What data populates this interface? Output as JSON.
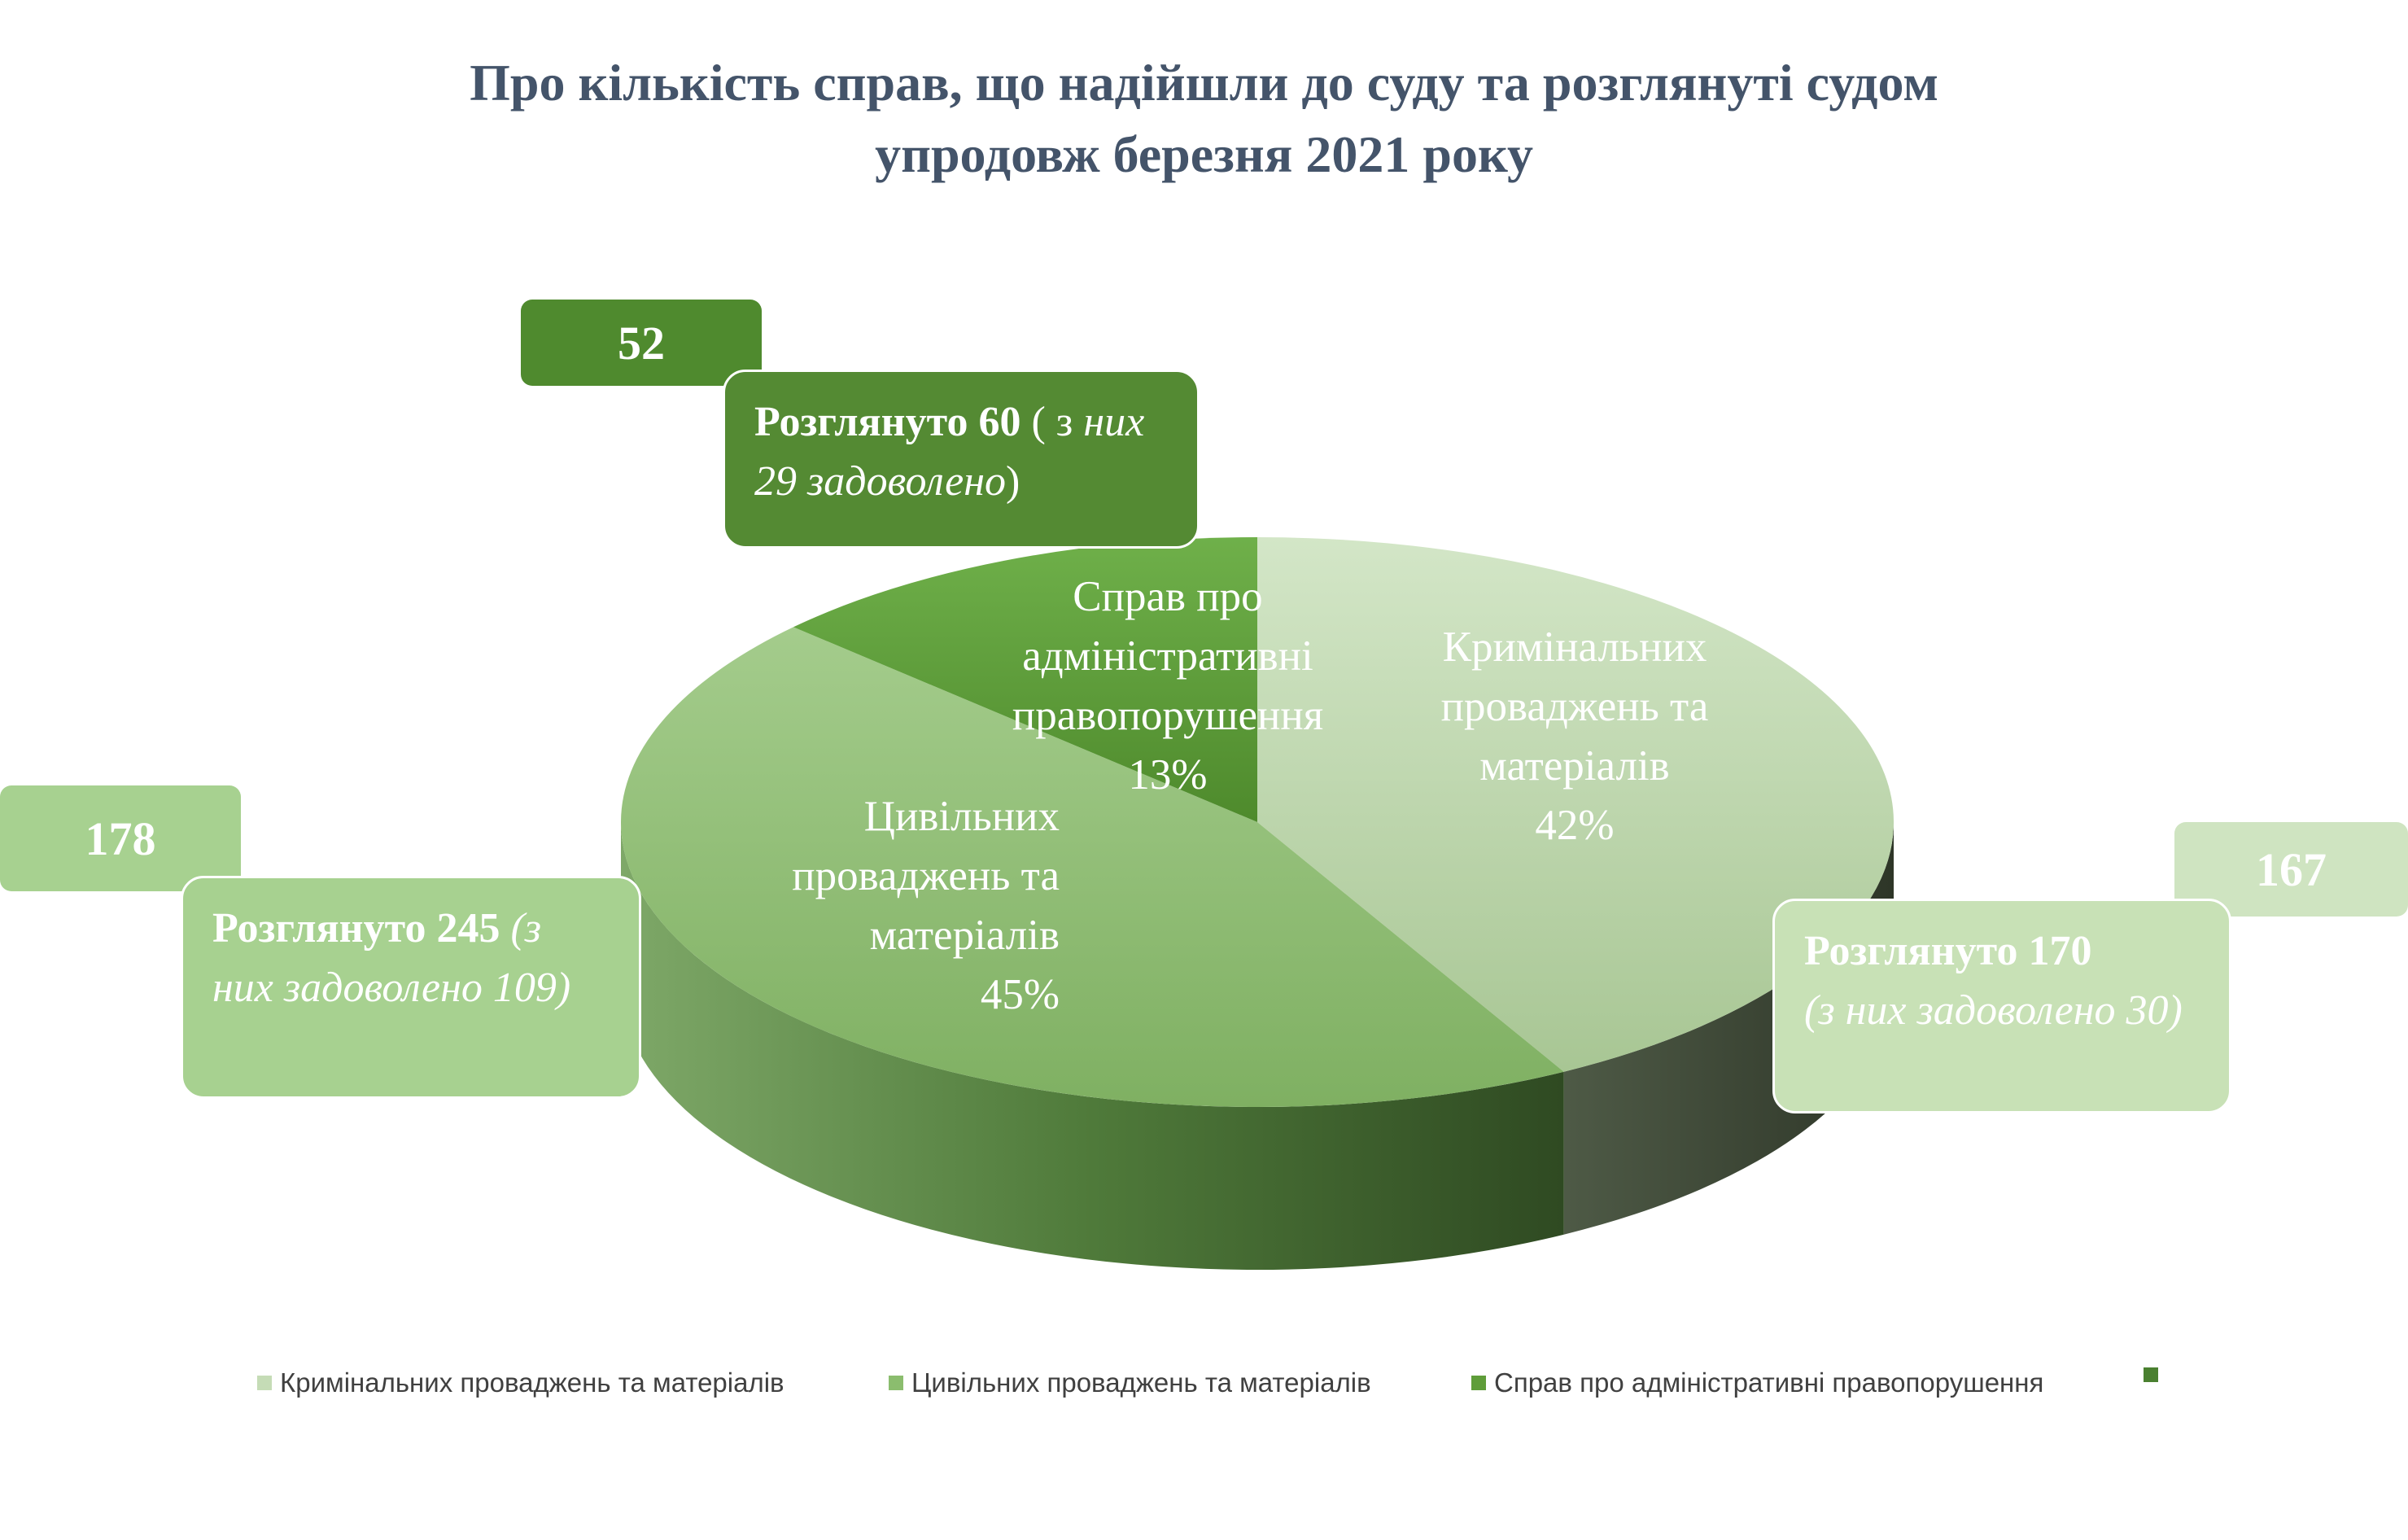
{
  "title": {
    "line1": "Про кількість справ, що надійшли до суду та розглянуті судом",
    "line2": "упродовж березня  2021 року"
  },
  "chart_data": {
    "type": "pie",
    "title": "Про кількість справ, що надійшли до суду та розглянуті судом упродовж березня  2021 року",
    "slices": [
      {
        "name": "Кримінальних проваджень та матеріалів",
        "label_lines": [
          "Кримінальних",
          "проваджень та",
          "матеріалів"
        ],
        "percent": 42,
        "percent_label": "42%",
        "value": 167,
        "color": "#c5dcb6"
      },
      {
        "name": "Цивільних проваджень та матеріалів",
        "label_lines": [
          "Цивільних",
          "проваджень та",
          "матеріалів"
        ],
        "percent": 45,
        "percent_label": "45%",
        "value": 178,
        "color": "#8bbd6e"
      },
      {
        "name": "Справ про адміністративні правопорушення",
        "label_lines": [
          "Справ про",
          "адміністративні",
          "правопорушення"
        ],
        "percent": 13,
        "percent_label": "13%",
        "value": 52,
        "color": "#5f9d3a"
      }
    ],
    "legend_position": "bottom",
    "legend_extra_color": "#4a8030"
  },
  "callouts": {
    "criminal": {
      "value": "167",
      "considered": "Розглянуто 170",
      "detail": "(з них задоволено 30)"
    },
    "civil": {
      "value": "178",
      "considered": "Розглянуто 245",
      "detail_open": " (з",
      "detail": "них задоволено 109)"
    },
    "admin": {
      "value": "52",
      "considered": "Розглянуто 60",
      "detail_open": " ( з",
      "detail": "них 29 задоволено",
      "detail_close": ")"
    }
  }
}
